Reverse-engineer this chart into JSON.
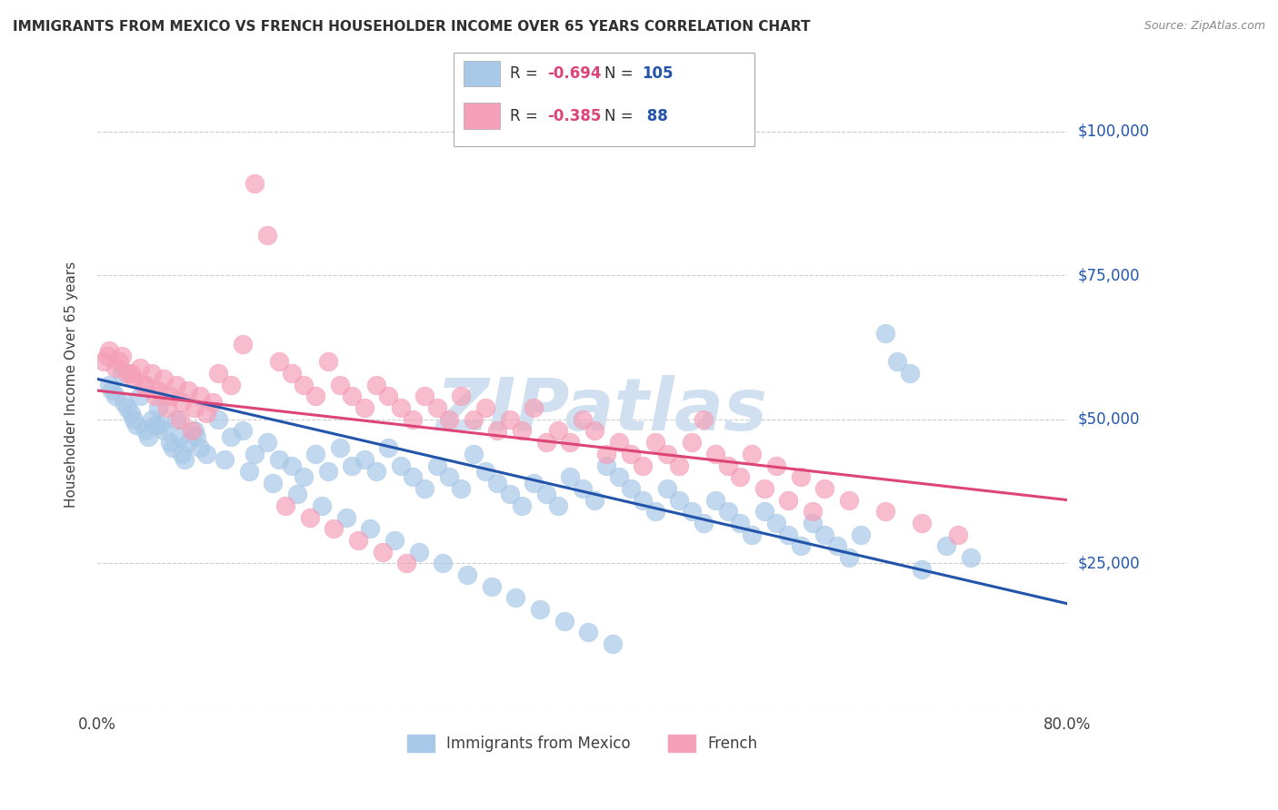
{
  "title": "IMMIGRANTS FROM MEXICO VS FRENCH HOUSEHOLDER INCOME OVER 65 YEARS CORRELATION CHART",
  "source": "Source: ZipAtlas.com",
  "ylabel": "Householder Income Over 65 years",
  "xmin": 0.0,
  "xmax": 80.0,
  "ymin": 0,
  "ymax": 112000,
  "yticks": [
    0,
    25000,
    50000,
    75000,
    100000
  ],
  "series": [
    {
      "name": "Immigrants from Mexico",
      "color": "#a8c8e8",
      "R": -0.694,
      "N": 105,
      "trend_color": "#2255aa",
      "trend_x0": 0.0,
      "trend_x1": 80.0,
      "trend_y0": 57000,
      "trend_y1": 18000
    },
    {
      "name": "French",
      "color": "#f5a0b8",
      "R": -0.385,
      "N": 88,
      "trend_color": "#dd4477",
      "trend_x0": 0.0,
      "trend_x1": 80.0,
      "trend_y0": 55000,
      "trend_y1": 36000
    }
  ],
  "legend_R_color": "#dd4477",
  "legend_N_color": "#2255aa",
  "watermark": "ZIPatlas",
  "watermark_color": "#d0e0f0",
  "background_color": "#ffffff",
  "grid_color": "#cccccc",
  "title_color": "#303030",
  "axis_label_color": "#404040",
  "blue_scatter_x": [
    1.0,
    1.5,
    2.0,
    2.5,
    3.0,
    3.5,
    4.0,
    4.5,
    5.0,
    5.5,
    6.0,
    6.5,
    7.0,
    7.5,
    8.0,
    1.2,
    2.2,
    3.2,
    4.2,
    5.2,
    6.2,
    7.2,
    8.2,
    9.0,
    10.0,
    11.0,
    12.0,
    13.0,
    14.0,
    15.0,
    16.0,
    17.0,
    18.0,
    19.0,
    20.0,
    21.0,
    22.0,
    23.0,
    24.0,
    25.0,
    26.0,
    27.0,
    28.0,
    29.0,
    30.0,
    31.0,
    32.0,
    33.0,
    34.0,
    35.0,
    36.0,
    37.0,
    38.0,
    39.0,
    40.0,
    41.0,
    42.0,
    43.0,
    44.0,
    45.0,
    46.0,
    47.0,
    48.0,
    49.0,
    50.0,
    51.0,
    52.0,
    53.0,
    54.0,
    55.0,
    56.0,
    57.0,
    58.0,
    59.0,
    60.0,
    61.0,
    62.0,
    63.0,
    65.0,
    66.0,
    67.0,
    68.0,
    70.0,
    72.0,
    2.8,
    4.8,
    6.8,
    8.5,
    10.5,
    12.5,
    14.5,
    16.5,
    18.5,
    20.5,
    22.5,
    24.5,
    26.5,
    28.5,
    30.5,
    32.5,
    34.5,
    36.5,
    38.5,
    40.5,
    42.5
  ],
  "blue_scatter_y": [
    56000,
    54000,
    58000,
    52000,
    50000,
    54000,
    48000,
    50000,
    52000,
    48000,
    46000,
    50000,
    44000,
    46000,
    48000,
    55000,
    53000,
    49000,
    47000,
    49000,
    45000,
    43000,
    47000,
    44000,
    50000,
    47000,
    48000,
    44000,
    46000,
    43000,
    42000,
    40000,
    44000,
    41000,
    45000,
    42000,
    43000,
    41000,
    45000,
    42000,
    40000,
    38000,
    42000,
    40000,
    38000,
    44000,
    41000,
    39000,
    37000,
    35000,
    39000,
    37000,
    35000,
    40000,
    38000,
    36000,
    42000,
    40000,
    38000,
    36000,
    34000,
    38000,
    36000,
    34000,
    32000,
    36000,
    34000,
    32000,
    30000,
    34000,
    32000,
    30000,
    28000,
    32000,
    30000,
    28000,
    26000,
    30000,
    65000,
    60000,
    58000,
    24000,
    28000,
    26000,
    51000,
    49000,
    47000,
    45000,
    43000,
    41000,
    39000,
    37000,
    35000,
    33000,
    31000,
    29000,
    27000,
    25000,
    23000,
    21000,
    19000,
    17000,
    15000,
    13000,
    11000
  ],
  "pink_scatter_x": [
    0.5,
    1.0,
    1.5,
    2.0,
    2.5,
    3.0,
    3.5,
    4.0,
    4.5,
    5.0,
    5.5,
    6.0,
    6.5,
    7.0,
    7.5,
    8.0,
    8.5,
    9.0,
    0.8,
    1.8,
    2.8,
    3.8,
    4.8,
    5.8,
    6.8,
    7.8,
    9.5,
    10.0,
    11.0,
    12.0,
    13.0,
    14.0,
    15.0,
    16.0,
    17.0,
    18.0,
    19.0,
    20.0,
    21.0,
    22.0,
    23.0,
    24.0,
    25.0,
    26.0,
    27.0,
    28.0,
    29.0,
    30.0,
    31.0,
    32.0,
    33.0,
    34.0,
    35.0,
    36.0,
    37.0,
    38.0,
    39.0,
    40.0,
    41.0,
    42.0,
    43.0,
    44.0,
    45.0,
    46.0,
    47.0,
    48.0,
    49.0,
    50.0,
    51.0,
    52.0,
    53.0,
    54.0,
    55.0,
    56.0,
    57.0,
    58.0,
    59.0,
    60.0,
    62.0,
    65.0,
    68.0,
    71.0,
    15.5,
    17.5,
    19.5,
    21.5,
    23.5,
    25.5
  ],
  "pink_scatter_y": [
    60000,
    62000,
    59000,
    61000,
    58000,
    57000,
    59000,
    56000,
    58000,
    55000,
    57000,
    54000,
    56000,
    53000,
    55000,
    52000,
    54000,
    51000,
    61000,
    60000,
    58000,
    56000,
    54000,
    52000,
    50000,
    48000,
    53000,
    58000,
    56000,
    63000,
    91000,
    82000,
    60000,
    58000,
    56000,
    54000,
    60000,
    56000,
    54000,
    52000,
    56000,
    54000,
    52000,
    50000,
    54000,
    52000,
    50000,
    54000,
    50000,
    52000,
    48000,
    50000,
    48000,
    52000,
    46000,
    48000,
    46000,
    50000,
    48000,
    44000,
    46000,
    44000,
    42000,
    46000,
    44000,
    42000,
    46000,
    50000,
    44000,
    42000,
    40000,
    44000,
    38000,
    42000,
    36000,
    40000,
    34000,
    38000,
    36000,
    34000,
    32000,
    30000,
    35000,
    33000,
    31000,
    29000,
    27000,
    25000
  ]
}
